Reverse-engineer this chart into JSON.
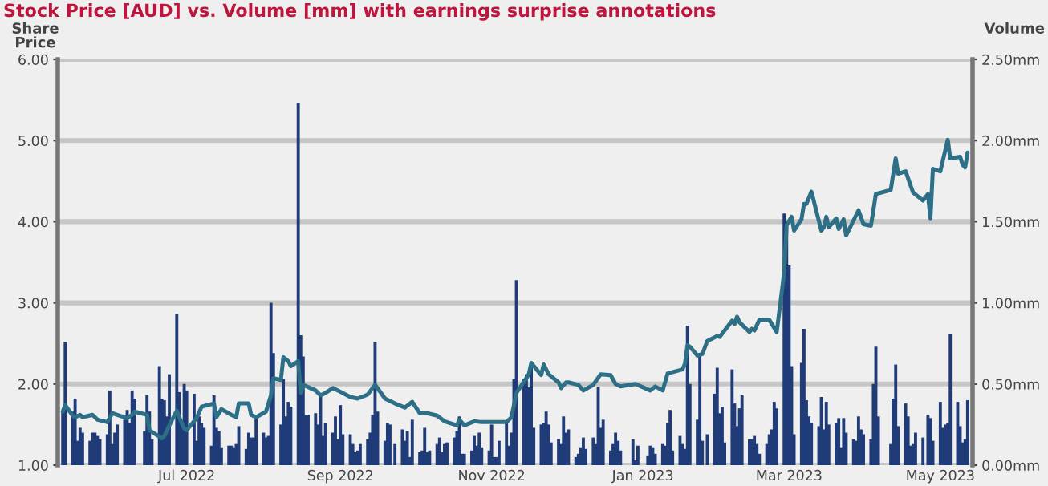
{
  "chart_data": {
    "type": "bar",
    "title": "Stock Price [AUD] vs. Volume [mm] with earnings surprise annotations",
    "ylabel": "Share\nPrice",
    "y2label": "Volume",
    "xlim": [
      "2022-05-10",
      "2023-05-14"
    ],
    "xticks": [
      {
        "value": "2022-07-01",
        "label": "Jul 2022"
      },
      {
        "value": "2022-09-01",
        "label": "Sep 2022"
      },
      {
        "value": "2022-11-01",
        "label": "Nov 2022"
      },
      {
        "value": "2023-01-01",
        "label": "Jan 2023"
      },
      {
        "value": "2023-03-01",
        "label": "Mar 2023"
      },
      {
        "value": "2023-05-01",
        "label": "May 2023"
      }
    ],
    "ylim": [
      1,
      6
    ],
    "yticks": [
      {
        "value": 1,
        "label": "1.00"
      },
      {
        "value": 2,
        "label": "2.00"
      },
      {
        "value": 3,
        "label": "3.00"
      },
      {
        "value": 4,
        "label": "4.00"
      },
      {
        "value": 5,
        "label": "5.00"
      },
      {
        "value": 6,
        "label": "6.00"
      }
    ],
    "y2lim": [
      0,
      2.5
    ],
    "y2ticks": [
      {
        "value": 0,
        "label": "0.00mm"
      },
      {
        "value": 0.5,
        "label": "0.50mm"
      },
      {
        "value": 1,
        "label": "1.00mm"
      },
      {
        "value": 1.5,
        "label": "1.50mm"
      },
      {
        "value": 2,
        "label": "2.00mm"
      },
      {
        "value": 2.5,
        "label": "2.50mm"
      }
    ],
    "grid": true,
    "series": [
      {
        "axis": "y2",
        "color": "#1f3b78",
        "x": [
          "2022-05-12",
          "2022-05-13",
          "2022-05-16",
          "2022-05-17",
          "2022-05-18",
          "2022-05-19",
          "2022-05-20",
          "2022-05-23",
          "2022-05-24",
          "2022-05-25",
          "2022-05-26",
          "2022-05-27",
          "2022-05-30",
          "2022-05-31",
          "2022-06-01",
          "2022-06-02",
          "2022-06-03",
          "2022-06-06",
          "2022-06-07",
          "2022-06-08",
          "2022-06-09",
          "2022-06-10",
          "2022-06-14",
          "2022-06-15",
          "2022-06-16",
          "2022-06-17",
          "2022-06-20",
          "2022-06-21",
          "2022-06-22",
          "2022-06-23",
          "2022-06-24",
          "2022-06-27",
          "2022-06-28",
          "2022-06-29",
          "2022-06-30",
          "2022-07-01",
          "2022-07-04",
          "2022-07-05",
          "2022-07-06",
          "2022-07-07",
          "2022-07-08",
          "2022-07-11",
          "2022-07-12",
          "2022-07-13",
          "2022-07-14",
          "2022-07-15",
          "2022-07-18",
          "2022-07-19",
          "2022-07-20",
          "2022-07-21",
          "2022-07-22",
          "2022-07-25",
          "2022-07-26",
          "2022-07-27",
          "2022-07-28",
          "2022-07-29",
          "2022-08-01",
          "2022-08-02",
          "2022-08-03",
          "2022-08-04",
          "2022-08-05",
          "2022-08-08",
          "2022-08-09",
          "2022-08-10",
          "2022-08-11",
          "2022-08-12",
          "2022-08-15",
          "2022-08-16",
          "2022-08-17",
          "2022-08-18",
          "2022-08-19",
          "2022-08-22",
          "2022-08-23",
          "2022-08-24",
          "2022-08-25",
          "2022-08-26",
          "2022-08-29",
          "2022-08-30",
          "2022-08-31",
          "2022-09-01",
          "2022-09-02",
          "2022-09-05",
          "2022-09-06",
          "2022-09-07",
          "2022-09-08",
          "2022-09-09",
          "2022-09-12",
          "2022-09-13",
          "2022-09-14",
          "2022-09-15",
          "2022-09-16",
          "2022-09-19",
          "2022-09-20",
          "2022-09-21",
          "2022-09-23",
          "2022-09-26",
          "2022-09-27",
          "2022-09-28",
          "2022-09-29",
          "2022-09-30",
          "2022-10-03",
          "2022-10-04",
          "2022-10-05",
          "2022-10-06",
          "2022-10-07",
          "2022-10-10",
          "2022-10-11",
          "2022-10-12",
          "2022-10-13",
          "2022-10-14",
          "2022-10-17",
          "2022-10-18",
          "2022-10-19",
          "2022-10-20",
          "2022-10-21",
          "2022-10-24",
          "2022-10-25",
          "2022-10-26",
          "2022-10-27",
          "2022-10-28",
          "2022-10-31",
          "2022-11-01",
          "2022-11-02",
          "2022-11-03",
          "2022-11-04",
          "2022-11-07",
          "2022-11-08",
          "2022-11-09",
          "2022-11-10",
          "2022-11-11",
          "2022-11-14",
          "2022-11-15",
          "2022-11-16",
          "2022-11-17",
          "2022-11-18",
          "2022-11-21",
          "2022-11-22",
          "2022-11-23",
          "2022-11-24",
          "2022-11-25",
          "2022-11-28",
          "2022-11-29",
          "2022-11-30",
          "2022-12-01",
          "2022-12-02",
          "2022-12-05",
          "2022-12-06",
          "2022-12-07",
          "2022-12-08",
          "2022-12-09",
          "2022-12-12",
          "2022-12-13",
          "2022-12-14",
          "2022-12-15",
          "2022-12-16",
          "2022-12-19",
          "2022-12-20",
          "2022-12-21",
          "2022-12-22",
          "2022-12-23",
          "2022-12-28",
          "2022-12-29",
          "2022-12-30",
          "2023-01-03",
          "2023-01-04",
          "2023-01-05",
          "2023-01-06",
          "2023-01-09",
          "2023-01-10",
          "2023-01-11",
          "2023-01-12",
          "2023-01-13",
          "2023-01-16",
          "2023-01-17",
          "2023-01-18",
          "2023-01-19",
          "2023-01-20",
          "2023-01-23",
          "2023-01-24",
          "2023-01-25",
          "2023-01-27",
          "2023-01-30",
          "2023-01-31",
          "2023-02-01",
          "2023-02-02",
          "2023-02-03",
          "2023-02-06",
          "2023-02-07",
          "2023-02-08",
          "2023-02-09",
          "2023-02-10",
          "2023-02-13",
          "2023-02-14",
          "2023-02-15",
          "2023-02-16",
          "2023-02-17",
          "2023-02-20",
          "2023-02-21",
          "2023-02-22",
          "2023-02-23",
          "2023-02-24",
          "2023-02-27",
          "2023-02-28",
          "2023-03-01",
          "2023-03-02",
          "2023-03-03",
          "2023-03-06",
          "2023-03-07",
          "2023-03-08",
          "2023-03-09",
          "2023-03-10",
          "2023-03-13",
          "2023-03-14",
          "2023-03-15",
          "2023-03-16",
          "2023-03-17",
          "2023-03-20",
          "2023-03-21",
          "2023-03-22",
          "2023-03-23",
          "2023-03-24",
          "2023-03-27",
          "2023-03-28",
          "2023-03-29",
          "2023-03-30",
          "2023-03-31",
          "2023-04-03",
          "2023-04-04",
          "2023-04-05",
          "2023-04-06",
          "2023-04-11",
          "2023-04-12",
          "2023-04-13",
          "2023-04-14",
          "2023-04-17",
          "2023-04-18",
          "2023-04-19",
          "2023-04-20",
          "2023-04-21",
          "2023-04-24",
          "2023-04-26",
          "2023-04-27",
          "2023-04-28",
          "2023-05-01",
          "2023-05-02",
          "2023-05-03",
          "2023-05-04",
          "2023-05-05",
          "2023-05-08",
          "2023-05-09",
          "2023-05-10",
          "2023-05-11",
          "2023-05-12"
        ],
        "values": [
          0.33,
          0.76,
          0.33,
          0.41,
          0.15,
          0.23,
          0.2,
          0.15,
          0.2,
          0.2,
          0.18,
          0.16,
          0.19,
          0.46,
          0.13,
          0.2,
          0.25,
          0.28,
          0.34,
          0.26,
          0.46,
          0.41,
          0.21,
          0.43,
          0.33,
          0.16,
          0.61,
          0.41,
          0.4,
          0.3,
          0.56,
          0.93,
          0.45,
          0.26,
          0.5,
          0.46,
          0.44,
          0.15,
          0.3,
          0.26,
          0.23,
          0.12,
          0.43,
          0.23,
          0.21,
          0.11,
          0.12,
          0.12,
          0.11,
          0.13,
          0.24,
          0.1,
          0.2,
          0.17,
          0.17,
          0.3,
          0.2,
          0.17,
          0.18,
          1.0,
          0.69,
          0.25,
          0.53,
          0.3,
          0.39,
          0.36,
          2.23,
          0.8,
          0.67,
          0.31,
          0.31,
          0.32,
          0.25,
          0.43,
          0.18,
          0.26,
          0.2,
          0.3,
          0.16,
          0.37,
          0.19,
          0.19,
          0.13,
          0.08,
          0.09,
          0.13,
          0.16,
          0.2,
          0.31,
          0.76,
          0.33,
          0.15,
          0.26,
          0.25,
          0.13,
          0.22,
          0.15,
          0.21,
          0.05,
          0.28,
          0.08,
          0.09,
          0.23,
          0.08,
          0.09,
          0.13,
          0.17,
          0.08,
          0.13,
          0.14,
          0.17,
          0.21,
          0.3,
          0.07,
          0.07,
          0.09,
          0.18,
          0.12,
          0.2,
          0.11,
          0.09,
          0.25,
          0.05,
          0.05,
          0.15,
          0.26,
          0.12,
          0.2,
          0.53,
          1.14,
          0.53,
          0.56,
          0.48,
          0.61,
          0.23,
          0.25,
          0.26,
          0.33,
          0.25,
          0.14,
          0.16,
          0.13,
          0.3,
          0.2,
          0.22,
          0.05,
          0.07,
          0.11,
          0.17,
          0.1,
          0.17,
          0.13,
          0.48,
          0.23,
          0.28,
          0.09,
          0.13,
          0.2,
          0.15,
          0.09,
          0.16,
          0.03,
          0.12,
          0.06,
          0.12,
          0.11,
          0.07,
          0.13,
          0.12,
          0.26,
          0.34,
          0.09,
          0.18,
          0.13,
          0.1,
          0.86,
          0.5,
          0.28,
          0.69,
          0.15,
          0.19,
          0.44,
          0.6,
          0.32,
          0.36,
          0.14,
          0.59,
          0.38,
          0.24,
          0.35,
          0.43,
          0.16,
          0.16,
          0.18,
          0.13,
          0.07,
          0.13,
          0.19,
          0.22,
          0.39,
          0.35,
          1.55,
          1.45,
          1.23,
          0.61,
          0.19,
          0.63,
          0.84,
          0.4,
          0.3,
          0.26,
          0.24,
          0.42,
          0.22,
          0.39,
          0.25,
          0.26,
          0.29,
          0.11,
          0.29,
          0.2,
          0.16,
          0.15,
          0.3,
          0.22,
          0.19,
          0.16,
          0.5,
          0.73,
          0.3,
          0.13,
          0.41,
          0.62,
          0.24,
          0.38,
          0.3,
          0.12,
          0.13,
          0.2,
          0.17,
          0.31,
          0.29,
          0.15,
          0.39,
          0.23,
          0.25,
          0.26,
          0.81,
          0.39,
          0.24,
          0.14,
          0.16,
          0.4
        ]
      },
      {
        "type": "line",
        "color": "#2d6f86",
        "x": [
          "2022-05-12",
          "2022-05-13",
          "2022-05-16",
          "2022-05-17",
          "2022-05-19",
          "2022-05-20",
          "2022-05-24",
          "2022-05-26",
          "2022-05-30",
          "2022-06-01",
          "2022-06-03",
          "2022-06-07",
          "2022-06-09",
          "2022-06-10",
          "2022-06-15",
          "2022-06-16",
          "2022-06-21",
          "2022-06-22",
          "2022-06-24",
          "2022-06-27",
          "2022-06-28",
          "2022-06-30",
          "2022-07-01",
          "2022-07-05",
          "2022-07-07",
          "2022-07-12",
          "2022-07-13",
          "2022-07-15",
          "2022-07-19",
          "2022-07-21",
          "2022-07-22",
          "2022-07-26",
          "2022-07-27",
          "2022-07-29",
          "2022-08-02",
          "2022-08-04",
          "2022-08-05",
          "2022-08-08",
          "2022-08-09",
          "2022-08-11",
          "2022-08-12",
          "2022-08-15",
          "2022-08-16",
          "2022-08-17",
          "2022-08-22",
          "2022-08-24",
          "2022-08-26",
          "2022-08-29",
          "2022-08-31",
          "2022-09-05",
          "2022-09-08",
          "2022-09-12",
          "2022-09-15",
          "2022-09-19",
          "2022-09-23",
          "2022-09-27",
          "2022-09-30",
          "2022-10-03",
          "2022-10-06",
          "2022-10-10",
          "2022-10-13",
          "2022-10-18",
          "2022-10-19",
          "2022-10-21",
          "2022-10-25",
          "2022-10-28",
          "2022-11-02",
          "2022-11-07",
          "2022-11-09",
          "2022-11-11",
          "2022-11-15",
          "2022-11-16",
          "2022-11-17",
          "2022-11-21",
          "2022-11-22",
          "2022-11-24",
          "2022-11-28",
          "2022-11-29",
          "2022-12-01",
          "2022-12-02",
          "2022-12-06",
          "2022-12-08",
          "2022-12-12",
          "2022-12-15",
          "2022-12-19",
          "2022-12-21",
          "2022-12-23",
          "2022-12-29",
          "2023-01-04",
          "2023-01-06",
          "2023-01-09",
          "2023-01-11",
          "2023-01-17",
          "2023-01-18",
          "2023-01-19",
          "2023-01-20",
          "2023-01-23",
          "2023-01-25",
          "2023-01-27",
          "2023-01-31",
          "2023-02-01",
          "2023-02-03",
          "2023-02-06",
          "2023-02-07",
          "2023-02-08",
          "2023-02-09",
          "2023-02-13",
          "2023-02-14",
          "2023-02-15",
          "2023-02-17",
          "2023-02-21",
          "2023-02-22",
          "2023-02-24",
          "2023-02-27",
          "2023-02-28",
          "2023-03-02",
          "2023-03-03",
          "2023-03-06",
          "2023-03-07",
          "2023-03-08",
          "2023-03-10",
          "2023-03-14",
          "2023-03-15",
          "2023-03-16",
          "2023-03-17",
          "2023-03-20",
          "2023-03-21",
          "2023-03-23",
          "2023-03-24",
          "2023-03-29",
          "2023-03-31",
          "2023-04-03",
          "2023-04-05",
          "2023-04-11",
          "2023-04-13",
          "2023-04-14",
          "2023-04-17",
          "2023-04-20",
          "2023-04-24",
          "2023-04-26",
          "2023-04-27",
          "2023-04-28",
          "2023-05-01",
          "2023-05-02",
          "2023-05-04",
          "2023-05-05",
          "2023-05-09",
          "2023-05-10",
          "2023-05-11",
          "2023-05-12"
        ],
        "values": [
          1.66,
          1.74,
          1.61,
          1.59,
          1.62,
          1.59,
          1.62,
          1.56,
          1.53,
          1.64,
          1.62,
          1.58,
          1.62,
          1.66,
          1.62,
          1.43,
          1.33,
          1.36,
          1.49,
          1.67,
          1.59,
          1.45,
          1.43,
          1.58,
          1.72,
          1.76,
          1.59,
          1.69,
          1.62,
          1.59,
          1.76,
          1.76,
          1.62,
          1.59,
          1.66,
          1.86,
          2.07,
          2.05,
          2.33,
          2.28,
          2.22,
          2.28,
          1.89,
          1.99,
          1.92,
          1.86,
          1.89,
          1.95,
          1.92,
          1.84,
          1.82,
          1.87,
          1.99,
          1.82,
          1.76,
          1.71,
          1.78,
          1.64,
          1.64,
          1.61,
          1.54,
          1.49,
          1.56,
          1.49,
          1.54,
          1.53,
          1.53,
          1.53,
          1.59,
          1.89,
          2.07,
          2.12,
          2.26,
          2.11,
          2.24,
          2.12,
          2.02,
          1.95,
          2.02,
          2.02,
          1.99,
          1.92,
          1.99,
          2.12,
          2.11,
          2.0,
          1.97,
          2.0,
          1.92,
          1.97,
          1.92,
          2.13,
          2.18,
          2.25,
          2.48,
          2.46,
          2.35,
          2.37,
          2.53,
          2.59,
          2.58,
          2.66,
          2.78,
          2.74,
          2.83,
          2.76,
          2.64,
          2.68,
          2.66,
          2.79,
          2.79,
          2.74,
          2.64,
          3.37,
          3.96,
          4.06,
          3.89,
          4.03,
          4.22,
          4.22,
          4.37,
          3.89,
          3.93,
          4.06,
          3.93,
          4.04,
          3.91,
          4.03,
          3.83,
          4.14,
          3.97,
          3.95,
          4.34,
          4.39,
          4.78,
          4.59,
          4.62,
          4.36,
          4.26,
          4.34,
          4.04,
          4.65,
          4.62,
          4.75,
          5.01,
          4.78,
          4.8,
          4.7,
          4.67,
          4.85
        ]
      }
    ]
  }
}
